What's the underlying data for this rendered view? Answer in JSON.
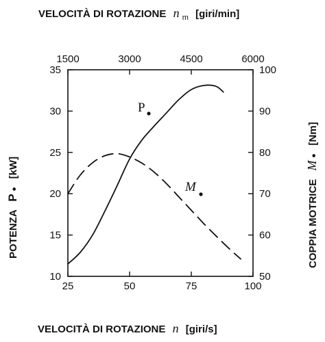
{
  "chart_data": {
    "type": "line",
    "title_top": {
      "text": "VELOCITÀ DI ROTAZIONE",
      "symbol": "n",
      "subscript": "m",
      "unit": "[giri/min]"
    },
    "xlabel": {
      "text": "VELOCITÀ DI ROTAZIONE",
      "symbol": "n",
      "unit": "[giri/s]"
    },
    "ylabel_left": {
      "text": "POTENZA",
      "symbol": "P",
      "unit": "[kW]"
    },
    "ylabel_right": {
      "text": "COPPIA MOTRICE",
      "symbol": "M",
      "unit": "[Nm]"
    },
    "x_range": [
      25,
      100
    ],
    "x_ticks": [
      "25",
      "50",
      "75",
      "100"
    ],
    "x_top_ticks": [
      "1500",
      "3000",
      "4500",
      "6000"
    ],
    "y_left_range": [
      10,
      35
    ],
    "y_left_ticks": [
      "10",
      "15",
      "20",
      "25",
      "30",
      "35"
    ],
    "y_right_range": [
      50,
      100
    ],
    "y_right_ticks": [
      "50",
      "60",
      "70",
      "80",
      "90",
      "100"
    ],
    "grid": false,
    "series": [
      {
        "name": "P",
        "axis": "left",
        "style": "solid",
        "x": [
          25,
          30,
          35,
          40,
          45,
          50,
          55,
          60,
          65,
          70,
          75,
          80,
          85,
          88
        ],
        "y": [
          11.5,
          12.9,
          15.0,
          17.9,
          21.0,
          24.2,
          26.5,
          28.2,
          29.8,
          31.4,
          32.6,
          33.1,
          33.0,
          32.3
        ]
      },
      {
        "name": "M",
        "axis": "right",
        "style": "dashed",
        "x": [
          25,
          30,
          35,
          40,
          45,
          50,
          55,
          60,
          65,
          70,
          75,
          80,
          85,
          90,
          95
        ],
        "y": [
          70.0,
          74.5,
          77.5,
          79.2,
          79.7,
          78.9,
          77.4,
          75.2,
          72.4,
          69.2,
          66.0,
          62.8,
          59.8,
          56.9,
          54.2
        ]
      }
    ]
  }
}
